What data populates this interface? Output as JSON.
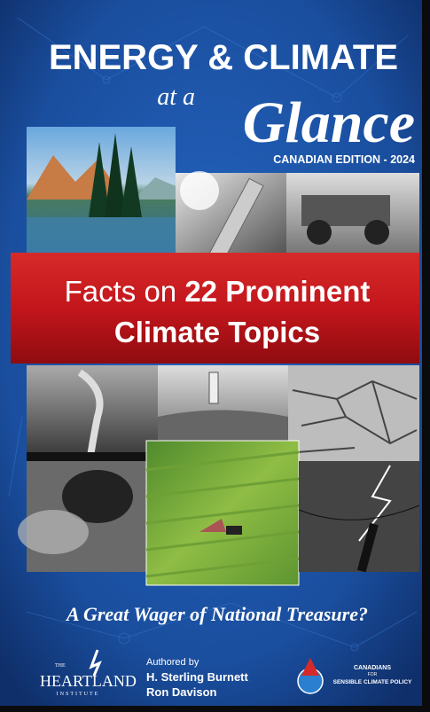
{
  "cover": {
    "title": "ENERGY & CLIMATE",
    "subtitle_small": "at a",
    "subtitle_script": "Glance",
    "edition": "CANADIAN EDITION - 2024",
    "banner": {
      "line1_light": "Facts on",
      "line1_bold": "22 Prominent",
      "line2": "Climate Topics"
    },
    "tagline": "A Great Wager of National Treasure?",
    "authors": {
      "heading": "Authored by",
      "names": [
        "H. Sterling Burnett",
        "Ron Davison"
      ]
    },
    "publisher": {
      "top": "THE",
      "name": "HEARTLAND",
      "bottom": "INSTITUTE"
    },
    "partner": {
      "line1": "CANADIANS",
      "line2": "FOR",
      "line3": "SENSIBLE CLIMATE POLICY"
    }
  }
}
